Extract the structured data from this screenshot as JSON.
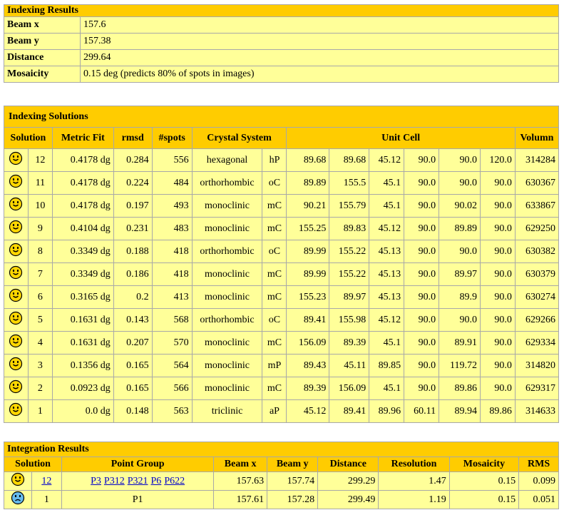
{
  "indexing_results": {
    "title": "Indexing Results",
    "rows": [
      {
        "label": "Beam x",
        "value": "157.6"
      },
      {
        "label": "Beam y",
        "value": "157.38"
      },
      {
        "label": "Distance",
        "value": "299.64"
      },
      {
        "label": "Mosaicity",
        "value": "0.15 deg (predicts 80% of spots in images)"
      }
    ]
  },
  "indexing_solutions": {
    "title": "Indexing Solutions",
    "headers": [
      "Solution",
      "Metric Fit",
      "rmsd",
      "#spots",
      "Crystal System",
      "Unit Cell",
      "Volumn"
    ],
    "icons": {
      "happy": "happy-face-icon",
      "sad": "sad-face-icon"
    },
    "rows": [
      {
        "icon": "happy",
        "n": "12",
        "fit": "0.4178 dg",
        "rmsd": "0.284",
        "spots": "556",
        "system": "hexagonal",
        "lattice": "hP",
        "cell": [
          "89.68",
          "89.68",
          "45.12",
          "90.0",
          "90.0",
          "120.0"
        ],
        "volume": "314284"
      },
      {
        "icon": "happy",
        "n": "11",
        "fit": "0.4178 dg",
        "rmsd": "0.224",
        "spots": "484",
        "system": "orthorhombic",
        "lattice": "oC",
        "cell": [
          "89.89",
          "155.5",
          "45.1",
          "90.0",
          "90.0",
          "90.0"
        ],
        "volume": "630367"
      },
      {
        "icon": "happy",
        "n": "10",
        "fit": "0.4178 dg",
        "rmsd": "0.197",
        "spots": "493",
        "system": "monoclinic",
        "lattice": "mC",
        "cell": [
          "90.21",
          "155.79",
          "45.1",
          "90.0",
          "90.02",
          "90.0"
        ],
        "volume": "633867"
      },
      {
        "icon": "happy",
        "n": "9",
        "fit": "0.4104 dg",
        "rmsd": "0.231",
        "spots": "483",
        "system": "monoclinic",
        "lattice": "mC",
        "cell": [
          "155.25",
          "89.83",
          "45.12",
          "90.0",
          "89.89",
          "90.0"
        ],
        "volume": "629250"
      },
      {
        "icon": "happy",
        "n": "8",
        "fit": "0.3349 dg",
        "rmsd": "0.188",
        "spots": "418",
        "system": "orthorhombic",
        "lattice": "oC",
        "cell": [
          "89.99",
          "155.22",
          "45.13",
          "90.0",
          "90.0",
          "90.0"
        ],
        "volume": "630382"
      },
      {
        "icon": "happy",
        "n": "7",
        "fit": "0.3349 dg",
        "rmsd": "0.186",
        "spots": "418",
        "system": "monoclinic",
        "lattice": "mC",
        "cell": [
          "89.99",
          "155.22",
          "45.13",
          "90.0",
          "89.97",
          "90.0"
        ],
        "volume": "630379"
      },
      {
        "icon": "happy",
        "n": "6",
        "fit": "0.3165 dg",
        "rmsd": "0.2",
        "spots": "413",
        "system": "monoclinic",
        "lattice": "mC",
        "cell": [
          "155.23",
          "89.97",
          "45.13",
          "90.0",
          "89.9",
          "90.0"
        ],
        "volume": "630274"
      },
      {
        "icon": "happy",
        "n": "5",
        "fit": "0.1631 dg",
        "rmsd": "0.143",
        "spots": "568",
        "system": "orthorhombic",
        "lattice": "oC",
        "cell": [
          "89.41",
          "155.98",
          "45.12",
          "90.0",
          "90.0",
          "90.0"
        ],
        "volume": "629266"
      },
      {
        "icon": "happy",
        "n": "4",
        "fit": "0.1631 dg",
        "rmsd": "0.207",
        "spots": "570",
        "system": "monoclinic",
        "lattice": "mC",
        "cell": [
          "156.09",
          "89.39",
          "45.1",
          "90.0",
          "89.91",
          "90.0"
        ],
        "volume": "629334"
      },
      {
        "icon": "happy",
        "n": "3",
        "fit": "0.1356 dg",
        "rmsd": "0.165",
        "spots": "564",
        "system": "monoclinic",
        "lattice": "mP",
        "cell": [
          "89.43",
          "45.11",
          "89.85",
          "90.0",
          "119.72",
          "90.0"
        ],
        "volume": "314820"
      },
      {
        "icon": "happy",
        "n": "2",
        "fit": "0.0923 dg",
        "rmsd": "0.165",
        "spots": "566",
        "system": "monoclinic",
        "lattice": "mC",
        "cell": [
          "89.39",
          "156.09",
          "45.1",
          "90.0",
          "89.86",
          "90.0"
        ],
        "volume": "629317"
      },
      {
        "icon": "happy",
        "n": "1",
        "fit": "0.0 dg",
        "rmsd": "0.148",
        "spots": "563",
        "system": "triclinic",
        "lattice": "aP",
        "cell": [
          "45.12",
          "89.41",
          "89.96",
          "60.11",
          "89.94",
          "89.86"
        ],
        "volume": "314633"
      }
    ]
  },
  "integration_results": {
    "title": "Integration Results",
    "headers": [
      "Solution",
      "Point Group",
      "Beam x",
      "Beam y",
      "Distance",
      "Resolution",
      "Mosaicity",
      "RMS"
    ],
    "rows": [
      {
        "icon": "happy",
        "n": "12",
        "n_link": true,
        "groups": [
          "P3",
          "P312",
          "P321",
          "P6",
          "P622"
        ],
        "beam_x": "157.63",
        "beam_y": "157.74",
        "distance": "299.29",
        "resolution": "1.47",
        "mosaicity": "0.15",
        "rms": "0.099"
      },
      {
        "icon": "sad",
        "n": "1",
        "n_link": false,
        "groups": [
          "P1"
        ],
        "beam_x": "157.61",
        "beam_y": "157.28",
        "distance": "299.49",
        "resolution": "1.19",
        "mosaicity": "0.15",
        "rms": "0.051"
      }
    ]
  },
  "colors": {
    "header": "#ffcc00",
    "cell": "#ffff99",
    "link": "#0000cc",
    "happy_face": "#ffd700",
    "sad_face": "#66bbee"
  }
}
